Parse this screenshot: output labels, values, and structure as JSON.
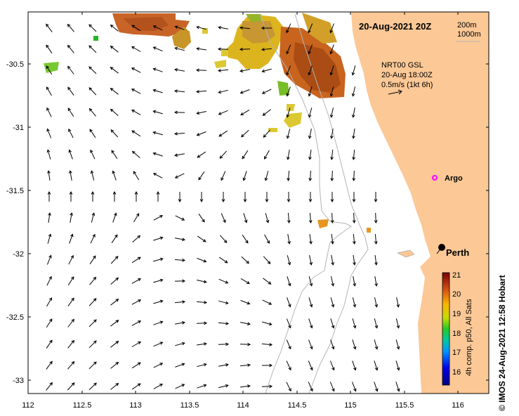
{
  "map": {
    "title": "20-Aug-2021 20Z",
    "depth_contours": [
      "200m",
      "1000m"
    ],
    "current_source": {
      "line1": "NRT00 GSL",
      "line2": "20-Aug 18:00Z",
      "line3": "0.5m/s (1kt 6h)"
    },
    "places": [
      {
        "name": "Argo",
        "lon": 115.77,
        "lat": -31.45,
        "marker": "magenta-circle"
      },
      {
        "name": "Perth",
        "lon": 115.86,
        "lat": -31.95,
        "marker": "black-dot"
      }
    ],
    "lon_ticks": [
      "112",
      "112.5",
      "113",
      "113.5",
      "114",
      "114.5",
      "115",
      "115.5",
      "116"
    ],
    "lat_ticks": [
      "-30.5",
      "-31",
      "-31.5",
      "-32",
      "-32.5",
      "-33"
    ],
    "lon_range": [
      112.0,
      116.28
    ],
    "lat_range": [
      -33.1,
      -30.05
    ],
    "colors": {
      "land": "#fbc896",
      "ocean": "#ffffff",
      "contour": "#b4b4b4",
      "argo": "#ff00ff"
    }
  },
  "colorbar": {
    "ticks": [
      "21",
      "20",
      "19",
      "18",
      "17",
      "16"
    ],
    "label": "4h comp. p50, All Sats",
    "range": [
      15.5,
      21
    ]
  },
  "credit": "© IMOS 24-Aug-2021 12:58 Hobart"
}
